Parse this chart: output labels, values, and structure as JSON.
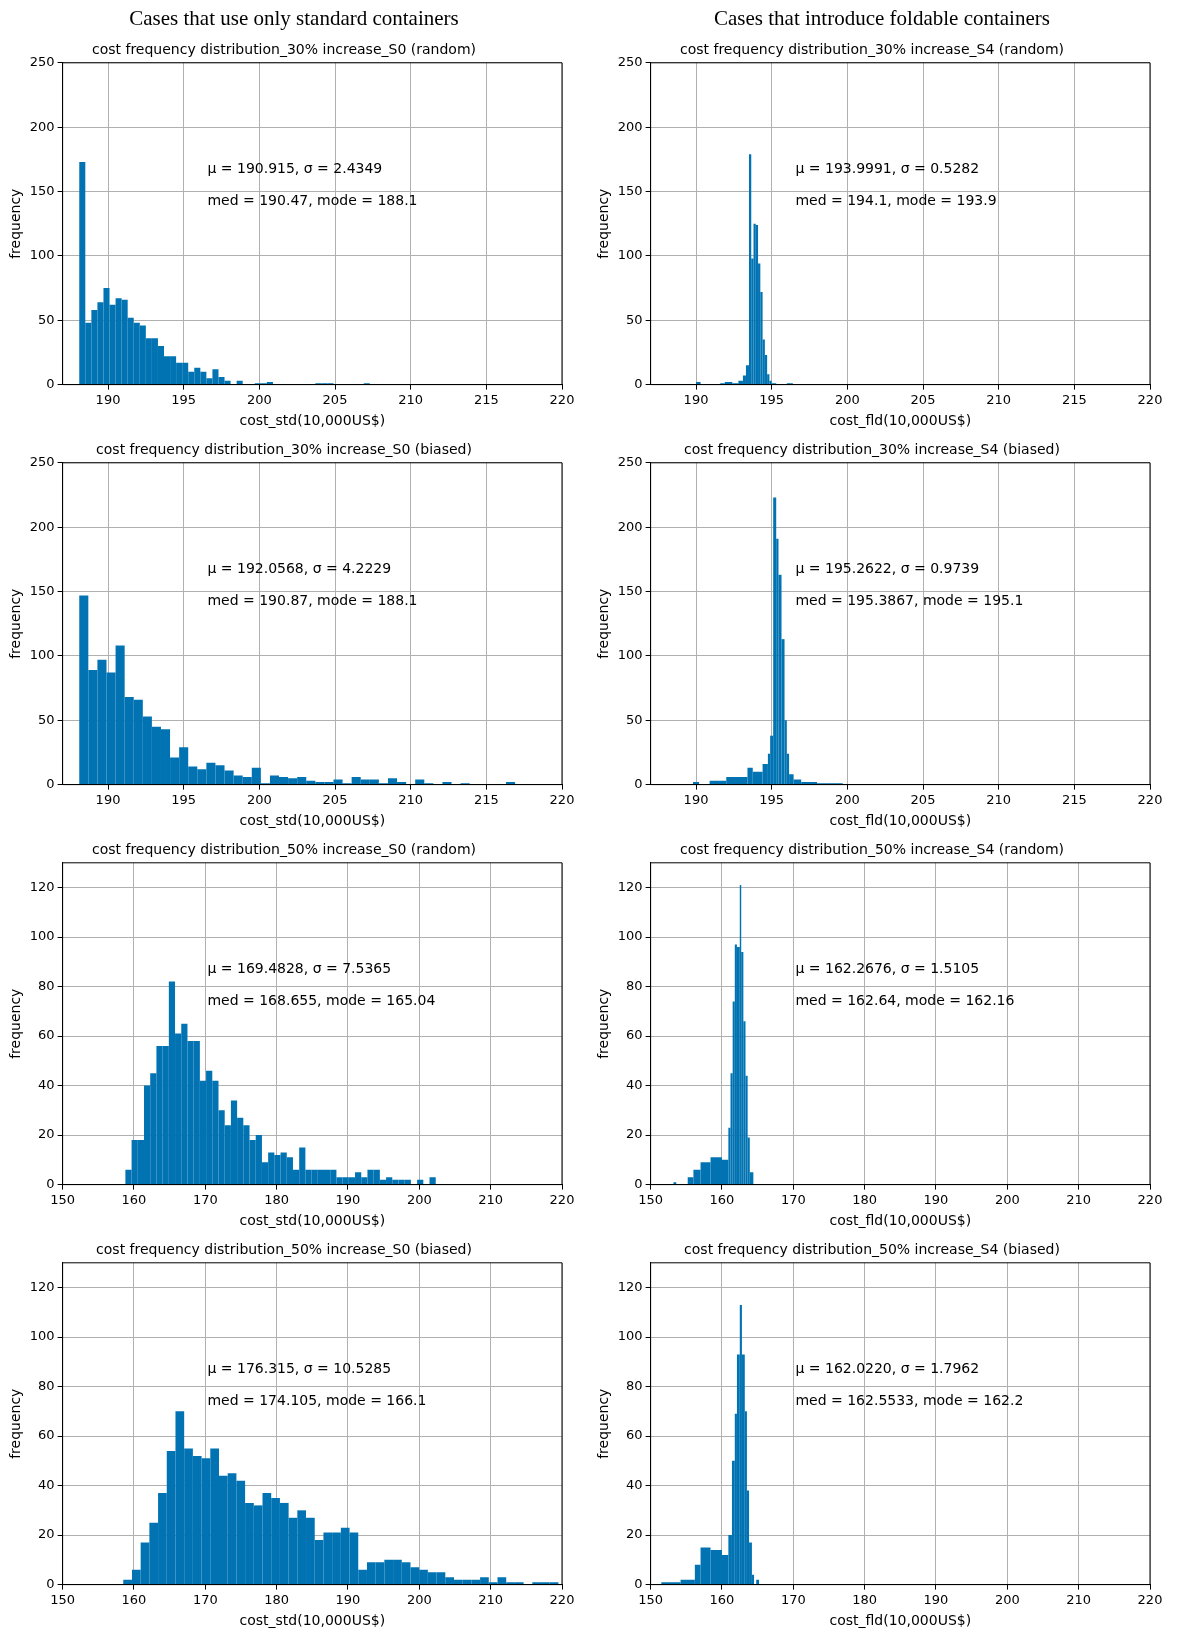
{
  "chart_data": [
    {
      "type": "histogram",
      "subtitle": "Cases that use only standard containers",
      "title": "cost frequency distribution_30% increase_S0 (random)",
      "xlabel": "cost_std(10,000US$)",
      "ylabel": "frequency",
      "color": "#0173b2",
      "grid": true,
      "xlim": [
        187,
        220
      ],
      "xticks": [
        190,
        195,
        200,
        205,
        210,
        215,
        220
      ],
      "ylim": [
        0,
        250
      ],
      "yticks": [
        0,
        50,
        100,
        150,
        200,
        250
      ],
      "bins": [
        188.1,
        188.5,
        188.9,
        189.3,
        189.7,
        190.1,
        190.5,
        190.9,
        191.3,
        191.7,
        192.1,
        192.5,
        192.9,
        193.3,
        193.7,
        194.1,
        194.5,
        194.9,
        195.3,
        195.7,
        196.1,
        196.5,
        196.9,
        197.3,
        197.7,
        198.1,
        198.5,
        198.9,
        199.3,
        199.7,
        200.1,
        200.5,
        200.9,
        201.3,
        201.7,
        202.1,
        202.5,
        202.9,
        203.3,
        203.7,
        204.1,
        204.5,
        204.9,
        205.3,
        205.7,
        206.1,
        206.5,
        206.9,
        207.3
      ],
      "values": [
        173,
        48,
        58,
        64,
        75,
        62,
        67,
        66,
        52,
        48,
        46,
        36,
        36,
        30,
        22,
        22,
        17,
        17,
        10,
        13,
        10,
        5,
        12,
        6,
        3,
        0,
        3,
        0,
        0,
        1,
        1,
        2,
        0,
        0,
        0,
        0,
        0,
        0,
        0,
        1,
        1,
        1,
        0,
        0,
        0,
        0,
        0,
        1
      ],
      "annotations": [
        "μ = 190.915, σ = 2.4349",
        "med = 190.47, mode = 188.1"
      ]
    },
    {
      "type": "histogram",
      "subtitle": "Cases that introduce foldable containers",
      "title": "cost frequency distribution_30% increase_S4 (random)",
      "xlabel": "cost_fld(10,000US$)",
      "ylabel": "frequency",
      "color": "#0173b2",
      "grid": true,
      "xlim": [
        187,
        220
      ],
      "xticks": [
        190,
        195,
        200,
        205,
        210,
        215,
        220
      ],
      "ylim": [
        0,
        250
      ],
      "yticks": [
        0,
        50,
        100,
        150,
        200,
        250
      ],
      "bins": [
        190.0,
        190.3,
        191.6,
        191.9,
        192.4,
        192.8,
        193.1,
        193.3,
        193.5,
        193.65,
        193.8,
        193.95,
        194.1,
        194.25,
        194.4,
        194.55,
        194.7,
        194.85,
        195.0,
        195.3,
        196.0,
        196.4
      ],
      "values": [
        2,
        0,
        1,
        2,
        1,
        3,
        7,
        15,
        179,
        98,
        125,
        124,
        94,
        72,
        35,
        23,
        8,
        3,
        1,
        0,
        1
      ],
      "annotations": [
        "μ = 193.9991, σ = 0.5282",
        "med = 194.1, mode = 193.9"
      ]
    },
    {
      "type": "histogram",
      "title": "cost frequency distribution_30% increase_S0 (biased)",
      "xlabel": "cost_std(10,000US$)",
      "ylabel": "frequency",
      "color": "#0173b2",
      "grid": true,
      "xlim": [
        187,
        220
      ],
      "xticks": [
        190,
        195,
        200,
        205,
        210,
        215,
        220
      ],
      "ylim": [
        0,
        250
      ],
      "yticks": [
        0,
        50,
        100,
        150,
        200,
        250
      ],
      "bins": [
        188.1,
        188.7,
        189.3,
        189.9,
        190.5,
        191.1,
        191.7,
        192.3,
        192.9,
        193.5,
        194.1,
        194.7,
        195.3,
        195.9,
        196.5,
        197.1,
        197.7,
        198.3,
        198.9,
        199.5,
        200.1,
        200.7,
        201.3,
        201.9,
        202.5,
        203.1,
        203.7,
        204.3,
        204.9,
        205.5,
        206.1,
        206.7,
        207.3,
        207.9,
        208.5,
        209.1,
        209.7,
        210.3,
        210.9,
        211.5,
        212.1,
        212.7,
        213.3,
        213.9,
        214.5,
        215.1,
        215.7,
        216.3,
        216.9
      ],
      "values": [
        147,
        89,
        97,
        87,
        108,
        68,
        66,
        53,
        45,
        43,
        21,
        29,
        14,
        12,
        17,
        15,
        11,
        7,
        6,
        13,
        1,
        7,
        6,
        5,
        6,
        3,
        2,
        2,
        4,
        1,
        6,
        4,
        4,
        1,
        5,
        2,
        0,
        4,
        1,
        0,
        2,
        0,
        1,
        0,
        0,
        0,
        0,
        2
      ],
      "annotations": [
        "μ = 192.0568, σ = 4.2229",
        "med = 190.87, mode = 188.1"
      ]
    },
    {
      "type": "histogram",
      "title": "cost frequency distribution_30% increase_S4 (biased)",
      "xlabel": "cost_fld(10,000US$)",
      "ylabel": "frequency",
      "color": "#0173b2",
      "grid": true,
      "xlim": [
        187,
        220
      ],
      "xticks": [
        190,
        195,
        200,
        205,
        210,
        215,
        220
      ],
      "ylim": [
        0,
        250
      ],
      "yticks": [
        0,
        50,
        100,
        150,
        200,
        250
      ],
      "bins": [
        189.8,
        190.2,
        190.9,
        192.0,
        193.4,
        193.75,
        194.4,
        194.75,
        194.9,
        195.1,
        195.3,
        195.45,
        195.65,
        195.85,
        196.0,
        196.15,
        196.45,
        196.95,
        198.0,
        199.7
      ],
      "values": [
        2,
        0,
        3,
        6,
        13,
        10,
        16,
        24,
        38,
        223,
        191,
        163,
        113,
        50,
        24,
        8,
        4,
        2,
        1
      ],
      "annotations": [
        "μ = 195.2622, σ = 0.9739",
        "med = 195.3867, mode = 195.1"
      ]
    },
    {
      "type": "histogram",
      "title": "cost frequency distribution_50% increase_S0 (random)",
      "xlabel": "cost_std(10,000US$)",
      "ylabel": "frequency",
      "color": "#0173b2",
      "grid": true,
      "xlim": [
        150,
        220
      ],
      "xticks": [
        150,
        160,
        170,
        180,
        190,
        200,
        210,
        220
      ],
      "ylim": [
        0,
        130
      ],
      "yticks": [
        0,
        20,
        40,
        60,
        80,
        100,
        120
      ],
      "bins": [
        158.8,
        159.67,
        160.54,
        161.41,
        162.28,
        163.15,
        164.02,
        164.89,
        165.76,
        166.63,
        167.5,
        168.37,
        169.24,
        170.11,
        170.98,
        171.85,
        172.72,
        173.59,
        174.46,
        175.33,
        176.2,
        177.07,
        177.94,
        178.81,
        179.68,
        180.55,
        181.42,
        182.29,
        183.16,
        184.03,
        184.9,
        185.77,
        186.64,
        187.51,
        188.38,
        189.25,
        190.12,
        190.99,
        191.86,
        192.73,
        193.6,
        194.47,
        195.34,
        196.21,
        197.08,
        197.95,
        198.82,
        199.69,
        200.56,
        201.43,
        202.3
      ],
      "values": [
        6,
        18,
        18,
        40,
        45,
        56,
        56,
        82,
        61,
        65,
        58,
        58,
        42,
        46,
        42,
        30,
        24,
        34,
        27,
        24,
        18,
        20,
        9,
        13,
        12,
        13,
        11,
        6,
        15,
        6,
        6,
        6,
        6,
        6,
        3,
        3,
        3,
        5,
        3,
        6,
        6,
        2,
        3,
        2,
        2,
        2,
        0,
        2,
        0,
        3
      ],
      "annotations": [
        "μ = 169.4828, σ = 7.5365",
        "med = 168.655, mode = 165.04"
      ]
    },
    {
      "type": "histogram",
      "title": "cost frequency distribution_50% increase_S4 (random)",
      "xlabel": "cost_fld(10,000US$)",
      "ylabel": "frequency",
      "color": "#0173b2",
      "grid": true,
      "xlim": [
        150,
        220
      ],
      "xticks": [
        150,
        160,
        170,
        180,
        190,
        200,
        210,
        220
      ],
      "ylim": [
        0,
        130
      ],
      "yticks": [
        0,
        20,
        40,
        60,
        80,
        100,
        120
      ],
      "bins": [
        153.2,
        153.6,
        155.2,
        156.0,
        157.0,
        158.4,
        160.0,
        160.9,
        161.2,
        161.5,
        161.8,
        162.1,
        162.5,
        162.7,
        163.0,
        163.3,
        163.6,
        163.9,
        164.4
      ],
      "values": [
        1,
        0,
        3,
        6,
        9,
        11,
        10,
        23,
        45,
        74,
        97,
        96,
        121,
        94,
        66,
        44,
        19,
        5
      ],
      "annotations": [
        "μ = 162.2676, σ = 1.5105",
        "med = 162.64, mode = 162.16"
      ]
    },
    {
      "type": "histogram",
      "title": "cost frequency distribution_50% increase_S0 (biased)",
      "xlabel": "cost_std(10,000US$)",
      "ylabel": "frequency",
      "color": "#0173b2",
      "grid": true,
      "xlim": [
        150,
        220
      ],
      "xticks": [
        150,
        160,
        170,
        180,
        190,
        200,
        210,
        220
      ],
      "ylim": [
        0,
        130
      ],
      "yticks": [
        0,
        20,
        40,
        60,
        80,
        100,
        120
      ],
      "bins": [
        158.5,
        159.72,
        160.94,
        162.16,
        163.38,
        164.6,
        165.82,
        167.04,
        168.26,
        169.48,
        170.7,
        171.92,
        173.14,
        174.36,
        175.58,
        176.8,
        178.02,
        179.24,
        180.46,
        181.68,
        182.9,
        184.12,
        185.34,
        186.56,
        187.78,
        189.0,
        190.22,
        191.44,
        192.66,
        193.88,
        195.1,
        196.32,
        197.54,
        198.76,
        199.98,
        201.2,
        202.42,
        203.64,
        204.86,
        206.08,
        207.3,
        208.52,
        209.74,
        210.96,
        212.18,
        213.4,
        214.62,
        215.84,
        217.06,
        218.28,
        219.5
      ],
      "values": [
        2,
        6,
        17,
        25,
        37,
        54,
        70,
        55,
        52,
        51,
        55,
        44,
        45,
        42,
        33,
        32,
        37,
        35,
        33,
        27,
        30,
        27,
        18,
        21,
        21,
        23,
        21,
        6,
        9,
        9,
        10,
        10,
        9,
        7,
        6,
        5,
        5,
        3,
        2,
        2,
        2,
        3,
        1,
        3,
        1,
        1,
        0,
        1,
        1,
        1
      ],
      "annotations": [
        "μ = 176.315, σ = 10.5285",
        "med = 174.105, mode = 166.1"
      ]
    },
    {
      "type": "histogram",
      "title": "cost frequency distribution_50% increase_S4 (biased)",
      "xlabel": "cost_fld(10,000US$)",
      "ylabel": "frequency",
      "color": "#0173b2",
      "grid": true,
      "xlim": [
        150,
        220
      ],
      "xticks": [
        150,
        160,
        170,
        180,
        190,
        200,
        210,
        220
      ],
      "ylim": [
        0,
        130
      ],
      "yticks": [
        0,
        20,
        40,
        60,
        80,
        100,
        120
      ],
      "bins": [
        151.5,
        154.2,
        156.2,
        157.0,
        158.4,
        160.0,
        160.9,
        161.4,
        161.8,
        162.1,
        162.5,
        162.8,
        163.2,
        163.5,
        163.8,
        164.2,
        164.5,
        164.8,
        165.2
      ],
      "values": [
        1,
        2,
        8,
        15,
        14,
        12,
        20,
        50,
        69,
        93,
        113,
        93,
        70,
        38,
        17,
        4,
        0,
        2
      ],
      "annotations": [
        "μ = 162.0220, σ = 1.7962",
        "med = 162.5533, mode = 162.2"
      ]
    }
  ]
}
